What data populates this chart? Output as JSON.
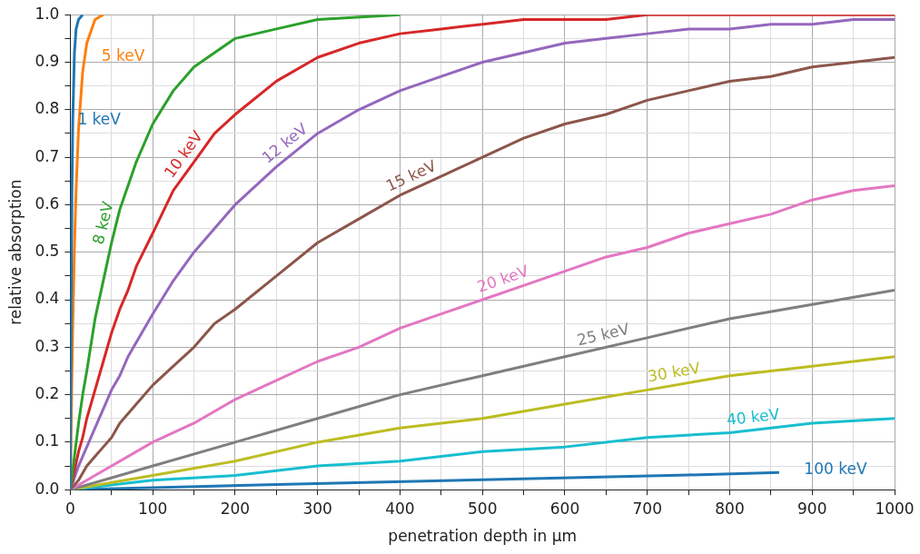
{
  "chart_data": {
    "type": "line",
    "xlabel": "penetration depth in µm",
    "ylabel": "relative absorption",
    "xlim": [
      0,
      1000
    ],
    "ylim": [
      0,
      1.0
    ],
    "xticks": [
      0,
      {
        "value": 50,
        "label": null
      },
      100,
      {
        "value": 150,
        "label": null
      },
      200,
      {
        "value": 250,
        "label": null
      },
      300,
      {
        "value": 350,
        "label": null
      },
      400,
      {
        "value": 450,
        "label": null
      },
      500,
      {
        "value": 550,
        "label": null
      },
      600,
      {
        "value": 650,
        "label": null
      },
      700,
      {
        "value": 750,
        "label": null
      },
      800,
      {
        "value": 850,
        "label": null
      },
      900,
      {
        "value": 950,
        "label": null
      },
      1000
    ],
    "yticks": [
      {
        "value": 0,
        "label": "0.0"
      },
      {
        "value": 0.05,
        "label": null
      },
      0.1,
      {
        "value": 0.15,
        "label": null
      },
      0.2,
      {
        "value": 0.25,
        "label": null
      },
      0.3,
      {
        "value": 0.35,
        "label": null
      },
      0.4,
      {
        "value": 0.45,
        "label": null
      },
      0.5,
      {
        "value": 0.55,
        "label": null
      },
      0.6,
      {
        "value": 0.65,
        "label": null
      },
      0.7,
      {
        "value": 0.75,
        "label": null
      },
      0.8,
      {
        "value": 0.85,
        "label": null
      },
      0.9,
      {
        "value": 0.95,
        "label": null
      },
      {
        "value": 1,
        "label": "1.0"
      }
    ],
    "grid": true,
    "series": [
      {
        "name": "1 keV",
        "color": "#1f77b4",
        "x": [
          0,
          1,
          2,
          3,
          5,
          7,
          10,
          15
        ],
        "values": [
          0,
          0.39,
          0.63,
          0.78,
          0.92,
          0.97,
          0.99,
          1.0
        ]
      },
      {
        "name": "5 keV",
        "color": "#ff7f0e",
        "x": [
          0,
          1,
          2,
          3,
          5,
          7,
          10,
          15,
          20,
          30,
          40
        ],
        "values": [
          0,
          0.13,
          0.25,
          0.35,
          0.51,
          0.63,
          0.76,
          0.88,
          0.94,
          0.99,
          1.0
        ]
      },
      {
        "name": "8 keV",
        "color": "#2ca02c",
        "x": [
          0,
          5,
          10,
          15,
          20,
          30,
          40,
          50,
          60,
          70,
          80,
          100,
          125,
          150,
          175,
          200,
          250,
          300,
          400
        ],
        "values": [
          0,
          0.07,
          0.14,
          0.2,
          0.25,
          0.36,
          0.44,
          0.52,
          0.59,
          0.64,
          0.69,
          0.77,
          0.84,
          0.89,
          0.92,
          0.95,
          0.97,
          0.99,
          1.0
        ]
      },
      {
        "name": "10 keV",
        "color": "#d62728",
        "x": [
          0,
          5,
          10,
          15,
          20,
          30,
          40,
          50,
          60,
          70,
          80,
          100,
          125,
          150,
          175,
          200,
          250,
          300,
          350,
          400,
          450,
          500,
          550,
          600,
          650,
          700,
          800,
          900,
          1000
        ],
        "values": [
          0,
          0.04,
          0.08,
          0.11,
          0.15,
          0.21,
          0.27,
          0.33,
          0.38,
          0.42,
          0.47,
          0.54,
          0.63,
          0.69,
          0.75,
          0.79,
          0.86,
          0.91,
          0.94,
          0.96,
          0.97,
          0.98,
          0.99,
          0.99,
          0.99,
          1.0,
          1.0,
          1.0,
          1.0
        ]
      },
      {
        "name": "12 keV",
        "color": "#9467bd",
        "x": [
          0,
          10,
          20,
          30,
          40,
          50,
          60,
          70,
          80,
          100,
          125,
          150,
          175,
          200,
          250,
          300,
          350,
          400,
          450,
          500,
          550,
          600,
          650,
          700,
          750,
          800,
          850,
          900,
          950,
          1000
        ],
        "values": [
          0,
          0.05,
          0.09,
          0.13,
          0.17,
          0.21,
          0.24,
          0.28,
          0.31,
          0.37,
          0.44,
          0.5,
          0.55,
          0.6,
          0.68,
          0.75,
          0.8,
          0.84,
          0.87,
          0.9,
          0.92,
          0.94,
          0.95,
          0.96,
          0.97,
          0.97,
          0.98,
          0.98,
          0.99,
          0.99
        ]
      },
      {
        "name": "15 keV",
        "color": "#8c564b",
        "x": [
          0,
          10,
          20,
          30,
          40,
          50,
          60,
          70,
          80,
          100,
          125,
          150,
          175,
          200,
          250,
          300,
          350,
          400,
          450,
          500,
          550,
          600,
          650,
          700,
          750,
          800,
          850,
          900,
          950,
          1000
        ],
        "values": [
          0,
          0.02,
          0.05,
          0.07,
          0.09,
          0.11,
          0.14,
          0.16,
          0.18,
          0.22,
          0.26,
          0.3,
          0.35,
          0.38,
          0.45,
          0.52,
          0.57,
          0.62,
          0.66,
          0.7,
          0.74,
          0.77,
          0.79,
          0.82,
          0.84,
          0.86,
          0.87,
          0.89,
          0.9,
          0.91
        ]
      },
      {
        "name": "20 keV",
        "color": "#e377c2",
        "x": [
          0,
          50,
          100,
          150,
          200,
          250,
          300,
          350,
          400,
          450,
          500,
          550,
          600,
          650,
          700,
          750,
          800,
          850,
          900,
          950,
          1000
        ],
        "values": [
          0,
          0.05,
          0.1,
          0.14,
          0.19,
          0.23,
          0.27,
          0.3,
          0.34,
          0.37,
          0.4,
          0.43,
          0.46,
          0.49,
          0.51,
          0.54,
          0.56,
          0.58,
          0.61,
          0.63,
          0.64
        ]
      },
      {
        "name": "25 keV",
        "color": "#7f7f7f",
        "x": [
          0,
          100,
          200,
          300,
          400,
          500,
          600,
          700,
          800,
          900,
          1000
        ],
        "values": [
          0,
          0.05,
          0.1,
          0.15,
          0.2,
          0.24,
          0.28,
          0.32,
          0.36,
          0.39,
          0.42
        ]
      },
      {
        "name": "30 keV",
        "color": "#bcbd22",
        "x": [
          0,
          100,
          200,
          300,
          400,
          500,
          600,
          700,
          800,
          900,
          1000
        ],
        "values": [
          0,
          0.03,
          0.06,
          0.1,
          0.13,
          0.15,
          0.18,
          0.21,
          0.24,
          0.26,
          0.28
        ]
      },
      {
        "name": "40 keV",
        "color": "#17becf",
        "x": [
          0,
          100,
          200,
          300,
          400,
          500,
          600,
          700,
          800,
          900,
          1000
        ],
        "values": [
          0,
          0.02,
          0.03,
          0.05,
          0.06,
          0.08,
          0.09,
          0.11,
          0.12,
          0.14,
          0.15
        ]
      },
      {
        "name": "100 keV",
        "color": "#1f77b4",
        "x": [
          0,
          250,
          500,
          750,
          860
        ],
        "values": [
          0,
          0.011,
          0.021,
          0.031,
          0.036
        ]
      }
    ]
  }
}
